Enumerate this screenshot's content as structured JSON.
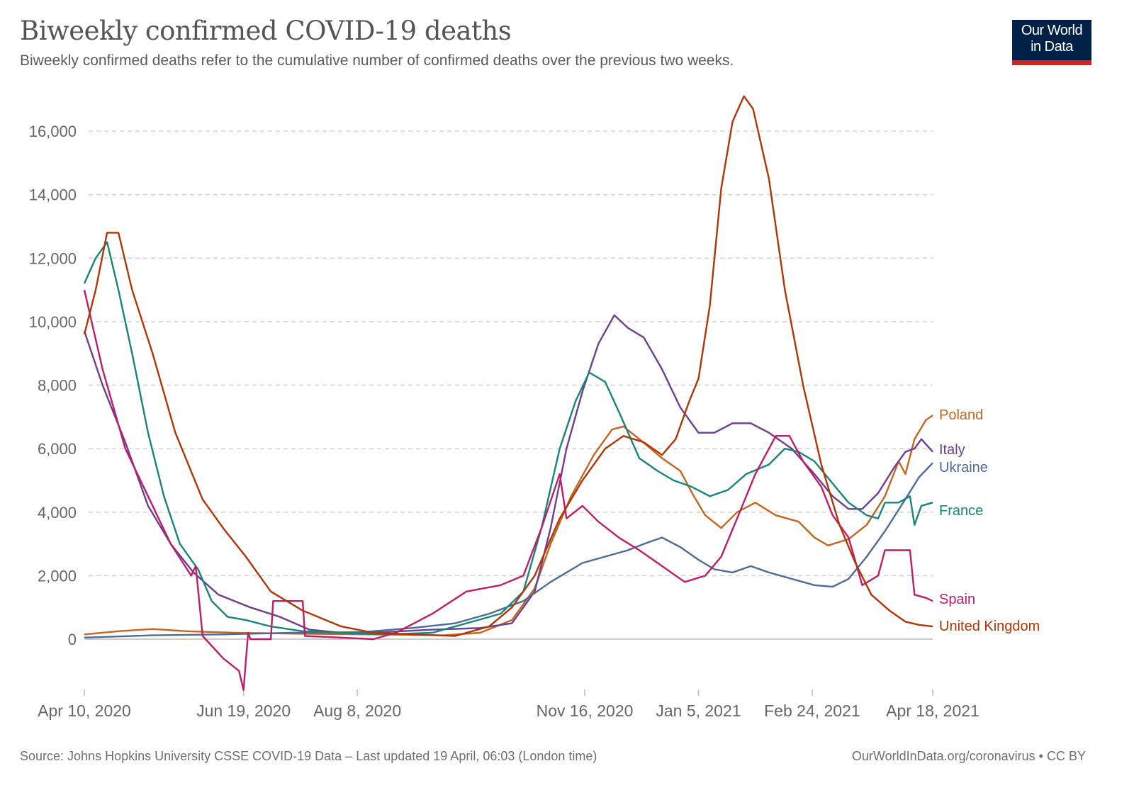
{
  "header": {
    "title": "Biweekly confirmed COVID-19 deaths",
    "subtitle": "Biweekly confirmed deaths refer to the cumulative number of confirmed deaths over the previous two weeks.",
    "logo_line1": "Our World",
    "logo_line2": "in Data"
  },
  "footer": {
    "source": "Source: Johns Hopkins University CSSE COVID-19 Data – Last updated 19 April, 06:03 (London time)",
    "credit": "OurWorldInData.org/coronavirus • CC BY"
  },
  "colors": {
    "logo_bg": "#002147",
    "logo_accent": "#ce261e"
  },
  "chart_data": {
    "type": "line",
    "title": "Biweekly confirmed COVID-19 deaths",
    "xlabel": "",
    "ylabel": "",
    "ylim": [
      -1700,
      17300
    ],
    "xlim": [
      "2020-04-10",
      "2021-04-18"
    ],
    "grid": "horizontal dashed",
    "legend": "right (inline labels at line ends)",
    "y_ticks": [
      0,
      2000,
      4000,
      6000,
      8000,
      10000,
      12000,
      14000,
      16000
    ],
    "y_tick_labels": [
      "0",
      "2,000",
      "4,000",
      "6,000",
      "8,000",
      "10,000",
      "12,000",
      "14,000",
      "16,000"
    ],
    "x_ticks": [
      {
        "date": "2020-04-10",
        "label": "Apr 10, 2020"
      },
      {
        "date": "2020-06-19",
        "label": "Jun 19, 2020"
      },
      {
        "date": "2020-08-08",
        "label": "Aug 8, 2020"
      },
      {
        "date": "2020-11-16",
        "label": "Nov 16, 2020"
      },
      {
        "date": "2021-01-05",
        "label": "Jan 5, 2021"
      },
      {
        "date": "2021-02-24",
        "label": "Feb 24, 2021"
      },
      {
        "date": "2021-04-18",
        "label": "Apr 18, 2021"
      }
    ],
    "series": [
      {
        "name": "Poland",
        "color": "#c4661f",
        "points": [
          [
            "2020-04-10",
            150
          ],
          [
            "2020-04-25",
            250
          ],
          [
            "2020-05-10",
            320
          ],
          [
            "2020-05-25",
            250
          ],
          [
            "2020-06-15",
            200
          ],
          [
            "2020-07-15",
            170
          ],
          [
            "2020-08-15",
            150
          ],
          [
            "2020-09-15",
            120
          ],
          [
            "2020-10-01",
            200
          ],
          [
            "2020-10-15",
            600
          ],
          [
            "2020-10-25",
            1600
          ],
          [
            "2020-11-01",
            3000
          ],
          [
            "2020-11-10",
            4500
          ],
          [
            "2020-11-20",
            5800
          ],
          [
            "2020-11-28",
            6600
          ],
          [
            "2020-12-03",
            6700
          ],
          [
            "2020-12-10",
            6300
          ],
          [
            "2020-12-20",
            5700
          ],
          [
            "2020-12-28",
            5300
          ],
          [
            "2021-01-03",
            4500
          ],
          [
            "2021-01-08",
            3900
          ],
          [
            "2021-01-15",
            3500
          ],
          [
            "2021-01-22",
            4000
          ],
          [
            "2021-01-30",
            4300
          ],
          [
            "2021-02-08",
            3900
          ],
          [
            "2021-02-18",
            3700
          ],
          [
            "2021-02-25",
            3200
          ],
          [
            "2021-03-03",
            2950
          ],
          [
            "2021-03-12",
            3150
          ],
          [
            "2021-03-20",
            3600
          ],
          [
            "2021-03-28",
            4500
          ],
          [
            "2021-04-03",
            5600
          ],
          [
            "2021-04-06",
            5200
          ],
          [
            "2021-04-10",
            6300
          ],
          [
            "2021-04-15",
            6900
          ],
          [
            "2021-04-18",
            7050
          ]
        ]
      },
      {
        "name": "Italy",
        "color": "#6d3e91",
        "points": [
          [
            "2020-04-10",
            9700
          ],
          [
            "2020-04-18",
            8000
          ],
          [
            "2020-04-28",
            6200
          ],
          [
            "2020-05-08",
            4200
          ],
          [
            "2020-05-18",
            3000
          ],
          [
            "2020-05-28",
            2100
          ],
          [
            "2020-06-08",
            1400
          ],
          [
            "2020-06-22",
            1000
          ],
          [
            "2020-07-05",
            700
          ],
          [
            "2020-07-18",
            300
          ],
          [
            "2020-08-01",
            200
          ],
          [
            "2020-08-20",
            220
          ],
          [
            "2020-09-10",
            300
          ],
          [
            "2020-10-01",
            350
          ],
          [
            "2020-10-15",
            500
          ],
          [
            "2020-10-25",
            1500
          ],
          [
            "2020-11-01",
            3500
          ],
          [
            "2020-11-08",
            6000
          ],
          [
            "2020-11-15",
            7800
          ],
          [
            "2020-11-22",
            9300
          ],
          [
            "2020-11-29",
            10200
          ],
          [
            "2020-12-05",
            9800
          ],
          [
            "2020-12-12",
            9500
          ],
          [
            "2020-12-20",
            8500
          ],
          [
            "2020-12-28",
            7300
          ],
          [
            "2021-01-05",
            6500
          ],
          [
            "2021-01-12",
            6500
          ],
          [
            "2021-01-20",
            6800
          ],
          [
            "2021-01-28",
            6800
          ],
          [
            "2021-02-05",
            6500
          ],
          [
            "2021-02-15",
            6000
          ],
          [
            "2021-02-25",
            5200
          ],
          [
            "2021-03-05",
            4500
          ],
          [
            "2021-03-12",
            4100
          ],
          [
            "2021-03-18",
            4100
          ],
          [
            "2021-03-25",
            4600
          ],
          [
            "2021-04-01",
            5400
          ],
          [
            "2021-04-06",
            5900
          ],
          [
            "2021-04-10",
            6000
          ],
          [
            "2021-04-13",
            6300
          ],
          [
            "2021-04-18",
            5900
          ]
        ]
      },
      {
        "name": "Ukraine",
        "color": "#4c6a9c",
        "points": [
          [
            "2020-04-10",
            50
          ],
          [
            "2020-05-10",
            120
          ],
          [
            "2020-06-10",
            150
          ],
          [
            "2020-07-10",
            200
          ],
          [
            "2020-08-10",
            220
          ],
          [
            "2020-09-01",
            350
          ],
          [
            "2020-09-20",
            500
          ],
          [
            "2020-10-05",
            800
          ],
          [
            "2020-10-20",
            1200
          ],
          [
            "2020-11-01",
            1800
          ],
          [
            "2020-11-15",
            2400
          ],
          [
            "2020-11-25",
            2600
          ],
          [
            "2020-12-05",
            2800
          ],
          [
            "2020-12-12",
            3000
          ],
          [
            "2020-12-20",
            3200
          ],
          [
            "2020-12-28",
            2900
          ],
          [
            "2021-01-05",
            2500
          ],
          [
            "2021-01-12",
            2200
          ],
          [
            "2021-01-20",
            2100
          ],
          [
            "2021-01-28",
            2300
          ],
          [
            "2021-02-05",
            2100
          ],
          [
            "2021-02-15",
            1900
          ],
          [
            "2021-02-25",
            1700
          ],
          [
            "2021-03-05",
            1650
          ],
          [
            "2021-03-12",
            1900
          ],
          [
            "2021-03-20",
            2600
          ],
          [
            "2021-03-28",
            3400
          ],
          [
            "2021-04-05",
            4300
          ],
          [
            "2021-04-12",
            5100
          ],
          [
            "2021-04-18",
            5550
          ]
        ]
      },
      {
        "name": "France",
        "color": "#18857a",
        "points": [
          [
            "2020-04-10",
            11200
          ],
          [
            "2020-04-15",
            12000
          ],
          [
            "2020-04-20",
            12500
          ],
          [
            "2020-04-25",
            11000
          ],
          [
            "2020-05-01",
            9000
          ],
          [
            "2020-05-08",
            6500
          ],
          [
            "2020-05-15",
            4500
          ],
          [
            "2020-05-22",
            3000
          ],
          [
            "2020-05-30",
            2200
          ],
          [
            "2020-06-05",
            1200
          ],
          [
            "2020-06-12",
            700
          ],
          [
            "2020-06-20",
            600
          ],
          [
            "2020-07-01",
            400
          ],
          [
            "2020-07-15",
            250
          ],
          [
            "2020-08-01",
            200
          ],
          [
            "2020-08-20",
            150
          ],
          [
            "2020-09-10",
            200
          ],
          [
            "2020-09-25",
            500
          ],
          [
            "2020-10-10",
            800
          ],
          [
            "2020-10-20",
            1500
          ],
          [
            "2020-10-28",
            3500
          ],
          [
            "2020-11-05",
            6000
          ],
          [
            "2020-11-12",
            7500
          ],
          [
            "2020-11-18",
            8400
          ],
          [
            "2020-11-25",
            8100
          ],
          [
            "2020-12-02",
            7000
          ],
          [
            "2020-12-10",
            5700
          ],
          [
            "2020-12-18",
            5300
          ],
          [
            "2020-12-25",
            5000
          ],
          [
            "2021-01-02",
            4800
          ],
          [
            "2021-01-10",
            4500
          ],
          [
            "2021-01-18",
            4700
          ],
          [
            "2021-01-26",
            5200
          ],
          [
            "2021-02-05",
            5500
          ],
          [
            "2021-02-12",
            6000
          ],
          [
            "2021-02-18",
            5900
          ],
          [
            "2021-02-25",
            5600
          ],
          [
            "2021-03-05",
            4900
          ],
          [
            "2021-03-12",
            4300
          ],
          [
            "2021-03-20",
            3900
          ],
          [
            "2021-03-25",
            3800
          ],
          [
            "2021-03-28",
            4300
          ],
          [
            "2021-04-03",
            4300
          ],
          [
            "2021-04-08",
            4500
          ],
          [
            "2021-04-10",
            3600
          ],
          [
            "2021-04-13",
            4200
          ],
          [
            "2021-04-18",
            4300
          ]
        ]
      },
      {
        "name": "Spain",
        "color": "#c01d68",
        "points": [
          [
            "2020-04-10",
            11000
          ],
          [
            "2020-04-18",
            8500
          ],
          [
            "2020-04-28",
            6000
          ],
          [
            "2020-05-08",
            4500
          ],
          [
            "2020-05-18",
            3000
          ],
          [
            "2020-05-27",
            2000
          ],
          [
            "2020-05-29",
            2300
          ],
          [
            "2020-06-01",
            100
          ],
          [
            "2020-06-10",
            -600
          ],
          [
            "2020-06-17",
            -1000
          ],
          [
            "2020-06-19",
            -1600
          ],
          [
            "2020-06-21",
            200
          ],
          [
            "2020-06-22",
            0
          ],
          [
            "2020-07-01",
            0
          ],
          [
            "2020-07-02",
            1200
          ],
          [
            "2020-07-15",
            1200
          ],
          [
            "2020-07-16",
            100
          ],
          [
            "2020-08-01",
            50
          ],
          [
            "2020-08-15",
            0
          ],
          [
            "2020-08-25",
            200
          ],
          [
            "2020-09-10",
            800
          ],
          [
            "2020-09-25",
            1500
          ],
          [
            "2020-10-10",
            1700
          ],
          [
            "2020-10-20",
            2000
          ],
          [
            "2020-10-28",
            3500
          ],
          [
            "2020-11-05",
            5200
          ],
          [
            "2020-11-08",
            3800
          ],
          [
            "2020-11-15",
            4200
          ],
          [
            "2020-11-22",
            3700
          ],
          [
            "2020-12-01",
            3200
          ],
          [
            "2020-12-10",
            2800
          ],
          [
            "2020-12-20",
            2300
          ],
          [
            "2020-12-30",
            1800
          ],
          [
            "2021-01-08",
            2000
          ],
          [
            "2021-01-15",
            2600
          ],
          [
            "2021-01-22",
            3800
          ],
          [
            "2021-01-30",
            5200
          ],
          [
            "2021-02-08",
            6400
          ],
          [
            "2021-02-14",
            6400
          ],
          [
            "2021-02-20",
            5600
          ],
          [
            "2021-02-28",
            4800
          ],
          [
            "2021-03-05",
            3900
          ],
          [
            "2021-03-12",
            3200
          ],
          [
            "2021-03-18",
            1700
          ],
          [
            "2021-03-25",
            2000
          ],
          [
            "2021-03-28",
            2800
          ],
          [
            "2021-04-05",
            2800
          ],
          [
            "2021-04-08",
            2800
          ],
          [
            "2021-04-10",
            1400
          ],
          [
            "2021-04-15",
            1300
          ],
          [
            "2021-04-18",
            1200
          ]
        ]
      },
      {
        "name": "United Kingdom",
        "color": "#b13507",
        "points": [
          [
            "2020-04-10",
            9600
          ],
          [
            "2020-04-15",
            11000
          ],
          [
            "2020-04-20",
            12800
          ],
          [
            "2020-04-25",
            12800
          ],
          [
            "2020-05-01",
            11000
          ],
          [
            "2020-05-10",
            9000
          ],
          [
            "2020-05-20",
            6500
          ],
          [
            "2020-06-01",
            4400
          ],
          [
            "2020-06-10",
            3500
          ],
          [
            "2020-06-20",
            2600
          ],
          [
            "2020-07-01",
            1500
          ],
          [
            "2020-07-15",
            900
          ],
          [
            "2020-08-01",
            400
          ],
          [
            "2020-08-15",
            200
          ],
          [
            "2020-09-01",
            150
          ],
          [
            "2020-09-20",
            100
          ],
          [
            "2020-10-05",
            400
          ],
          [
            "2020-10-15",
            1000
          ],
          [
            "2020-10-25",
            2000
          ],
          [
            "2020-11-05",
            3800
          ],
          [
            "2020-11-15",
            5000
          ],
          [
            "2020-11-25",
            6000
          ],
          [
            "2020-12-03",
            6400
          ],
          [
            "2020-12-12",
            6200
          ],
          [
            "2020-12-20",
            5800
          ],
          [
            "2020-12-26",
            6300
          ],
          [
            "2021-01-01",
            7500
          ],
          [
            "2021-01-05",
            8200
          ],
          [
            "2021-01-10",
            10500
          ],
          [
            "2021-01-15",
            14200
          ],
          [
            "2021-01-20",
            16300
          ],
          [
            "2021-01-25",
            17100
          ],
          [
            "2021-01-29",
            16700
          ],
          [
            "2021-02-05",
            14500
          ],
          [
            "2021-02-12",
            11000
          ],
          [
            "2021-02-20",
            8000
          ],
          [
            "2021-02-28",
            5500
          ],
          [
            "2021-03-08",
            3600
          ],
          [
            "2021-03-15",
            2400
          ],
          [
            "2021-03-22",
            1400
          ],
          [
            "2021-03-30",
            900
          ],
          [
            "2021-04-06",
            550
          ],
          [
            "2021-04-12",
            450
          ],
          [
            "2021-04-18",
            400
          ]
        ]
      }
    ]
  }
}
